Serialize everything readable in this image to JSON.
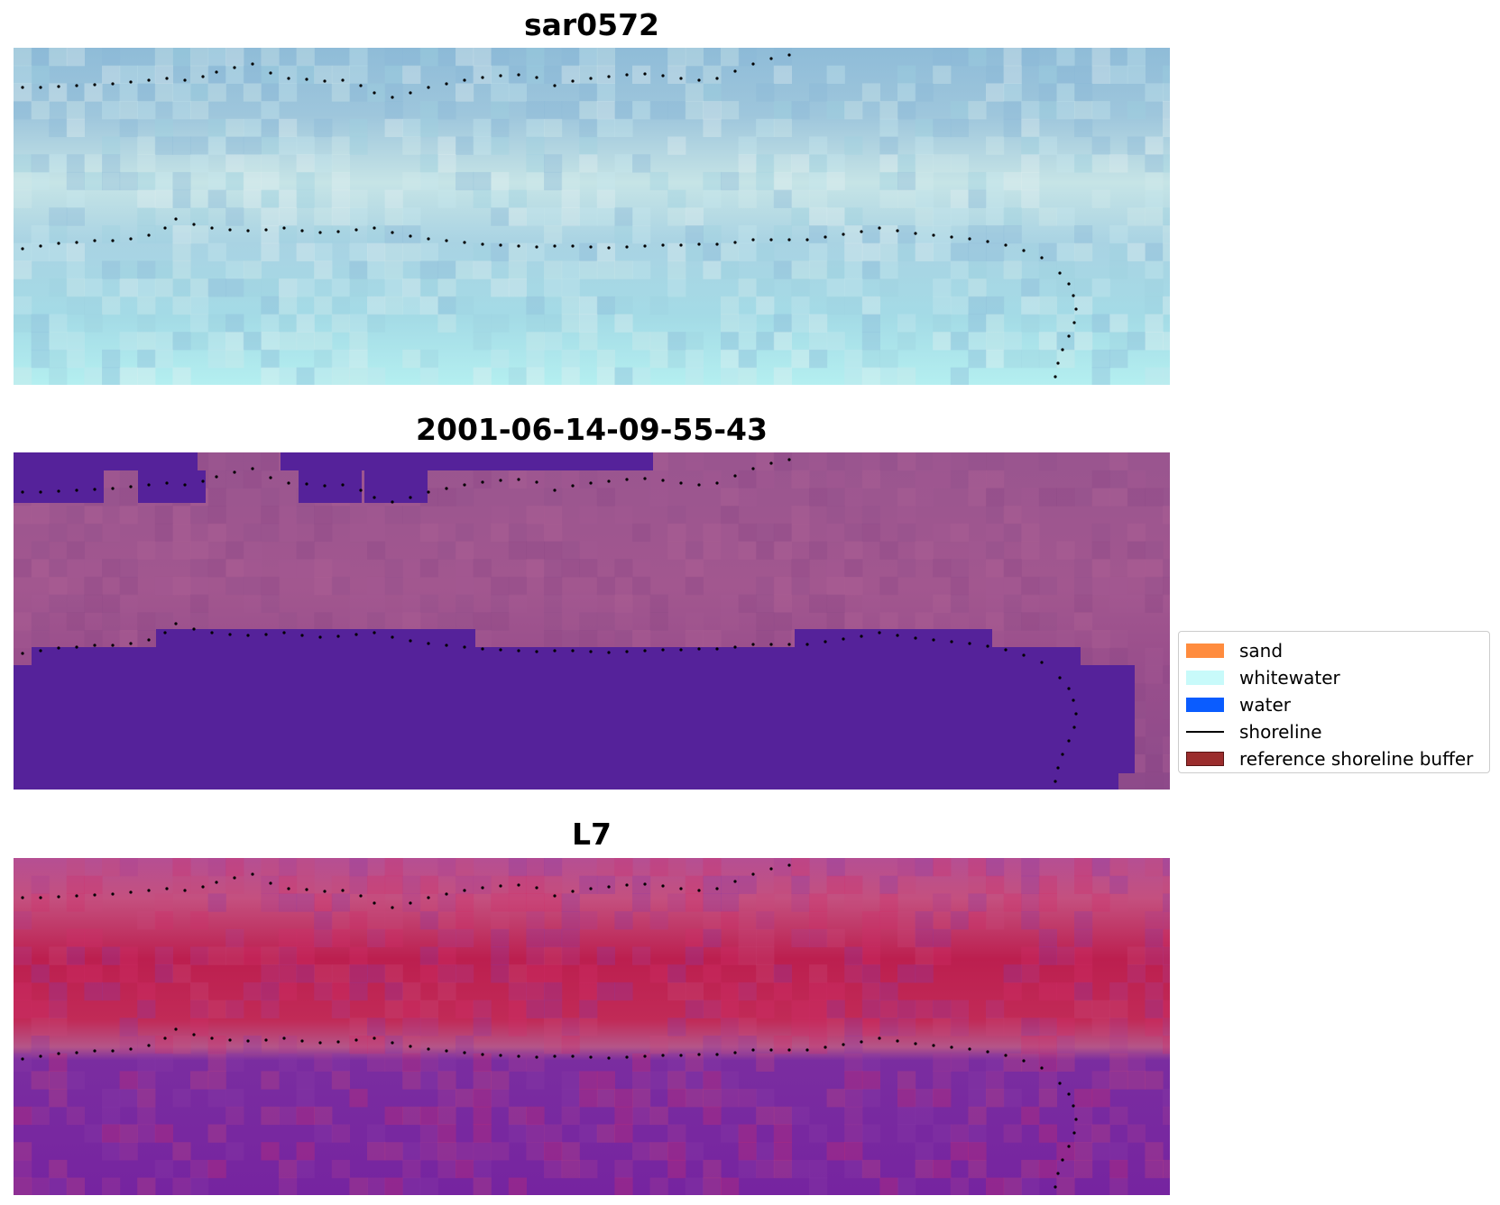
{
  "panels": [
    {
      "title": "sar0572",
      "style": "sar"
    },
    {
      "title": "2001-06-14-09-55-43",
      "style": "classified"
    },
    {
      "title": "L7",
      "style": "falsecolor"
    }
  ],
  "legend": {
    "items": [
      {
        "label": "sand",
        "color": "#ff8c3e",
        "type": "patch"
      },
      {
        "label": "whitewater",
        "color": "#c8fafa",
        "type": "patch"
      },
      {
        "label": "water",
        "color": "#0a5cff",
        "type": "patch"
      },
      {
        "label": "shoreline",
        "color": "#000000",
        "type": "line"
      },
      {
        "label": "reference shoreline buffer",
        "color": "#9b2d2d",
        "type": "patch"
      }
    ]
  },
  "colors": {
    "sar_base": "#a6d6e4",
    "classified_base": "#9b508e",
    "classified_water": "#55229a",
    "falsecolor_land": "#c23b6e",
    "falsecolor_water": "#6a1aa0",
    "shoreline_points": "#000000"
  }
}
